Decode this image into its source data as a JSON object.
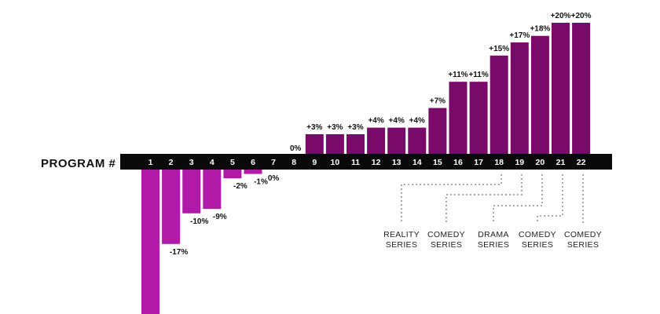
{
  "chart_data": {
    "type": "bar",
    "xlabel": "PROGRAM #",
    "categories": [
      "1",
      "2",
      "3",
      "4",
      "5",
      "6",
      "7",
      "8",
      "9",
      "10",
      "11",
      "12",
      "13",
      "14",
      "15",
      "16",
      "17",
      "18",
      "19",
      "20",
      "21",
      "22"
    ],
    "values": [
      -33,
      -17,
      -10,
      -9,
      -2,
      -1,
      0,
      0,
      3,
      3,
      3,
      4,
      4,
      4,
      7,
      11,
      11,
      15,
      17,
      18,
      20,
      20
    ],
    "data_labels": [
      "",
      "-17%",
      "-10%",
      "-9%",
      "-2%",
      "-1%",
      "0%",
      "0%",
      "+3%",
      "+3%",
      "+3%",
      "+4%",
      "+4%",
      "+4%",
      "+7%",
      "+11%",
      "+11%",
      "+15%",
      "+17%",
      "+18%",
      "+20%",
      "+20%"
    ],
    "ylim": [
      -33,
      20
    ],
    "colors": {
      "negative": "#b01aa7",
      "positive": "#7a0a6a",
      "axis_bar": "#0a0a0a"
    },
    "annotations": [
      {
        "line1": "REALITY",
        "line2": "SERIES",
        "program": "18"
      },
      {
        "line1": "COMEDY",
        "line2": "SERIES",
        "program": "19"
      },
      {
        "line1": "DRAMA",
        "line2": "SERIES",
        "program": "20"
      },
      {
        "line1": "COMEDY",
        "line2": "SERIES",
        "program": "21"
      },
      {
        "line1": "COMEDY",
        "line2": "SERIES",
        "program": "22"
      }
    ]
  }
}
